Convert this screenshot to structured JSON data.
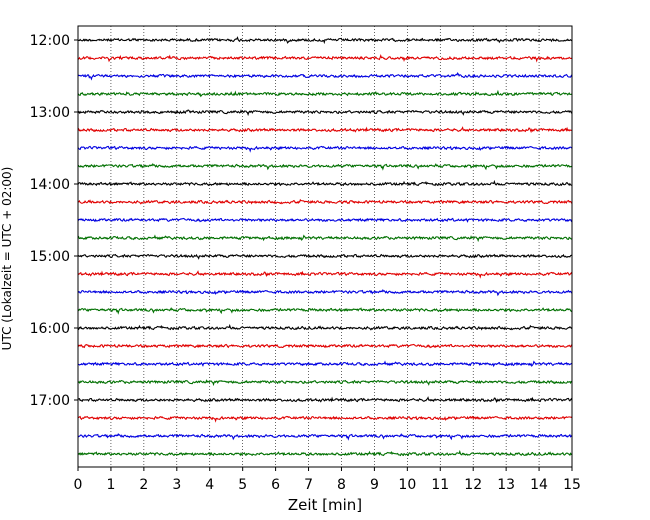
{
  "chart_data": {
    "type": "line",
    "title": "",
    "xlabel": "Zeit  [min]",
    "ylabel": "UTC (Lokalzeit = UTC + 02:00)",
    "xlim": [
      0,
      15
    ],
    "x_ticks": [
      "0",
      "1",
      "2",
      "3",
      "4",
      "5",
      "6",
      "7",
      "8",
      "9",
      "10",
      "11",
      "12",
      "13",
      "14",
      "15"
    ],
    "y_tick_labels": [
      "12:00",
      "13:00",
      "14:00",
      "15:00",
      "16:00",
      "17:00"
    ],
    "grid": "vertical dotted",
    "trace_interval_min": 15,
    "traces_per_hour": 4,
    "start_time": "12:00",
    "end_time": "17:45",
    "trace_colors": [
      "#000000",
      "#e00000",
      "#0000e0",
      "#007000"
    ],
    "trace_amplitude_note": "low-amplitude noise"
  }
}
